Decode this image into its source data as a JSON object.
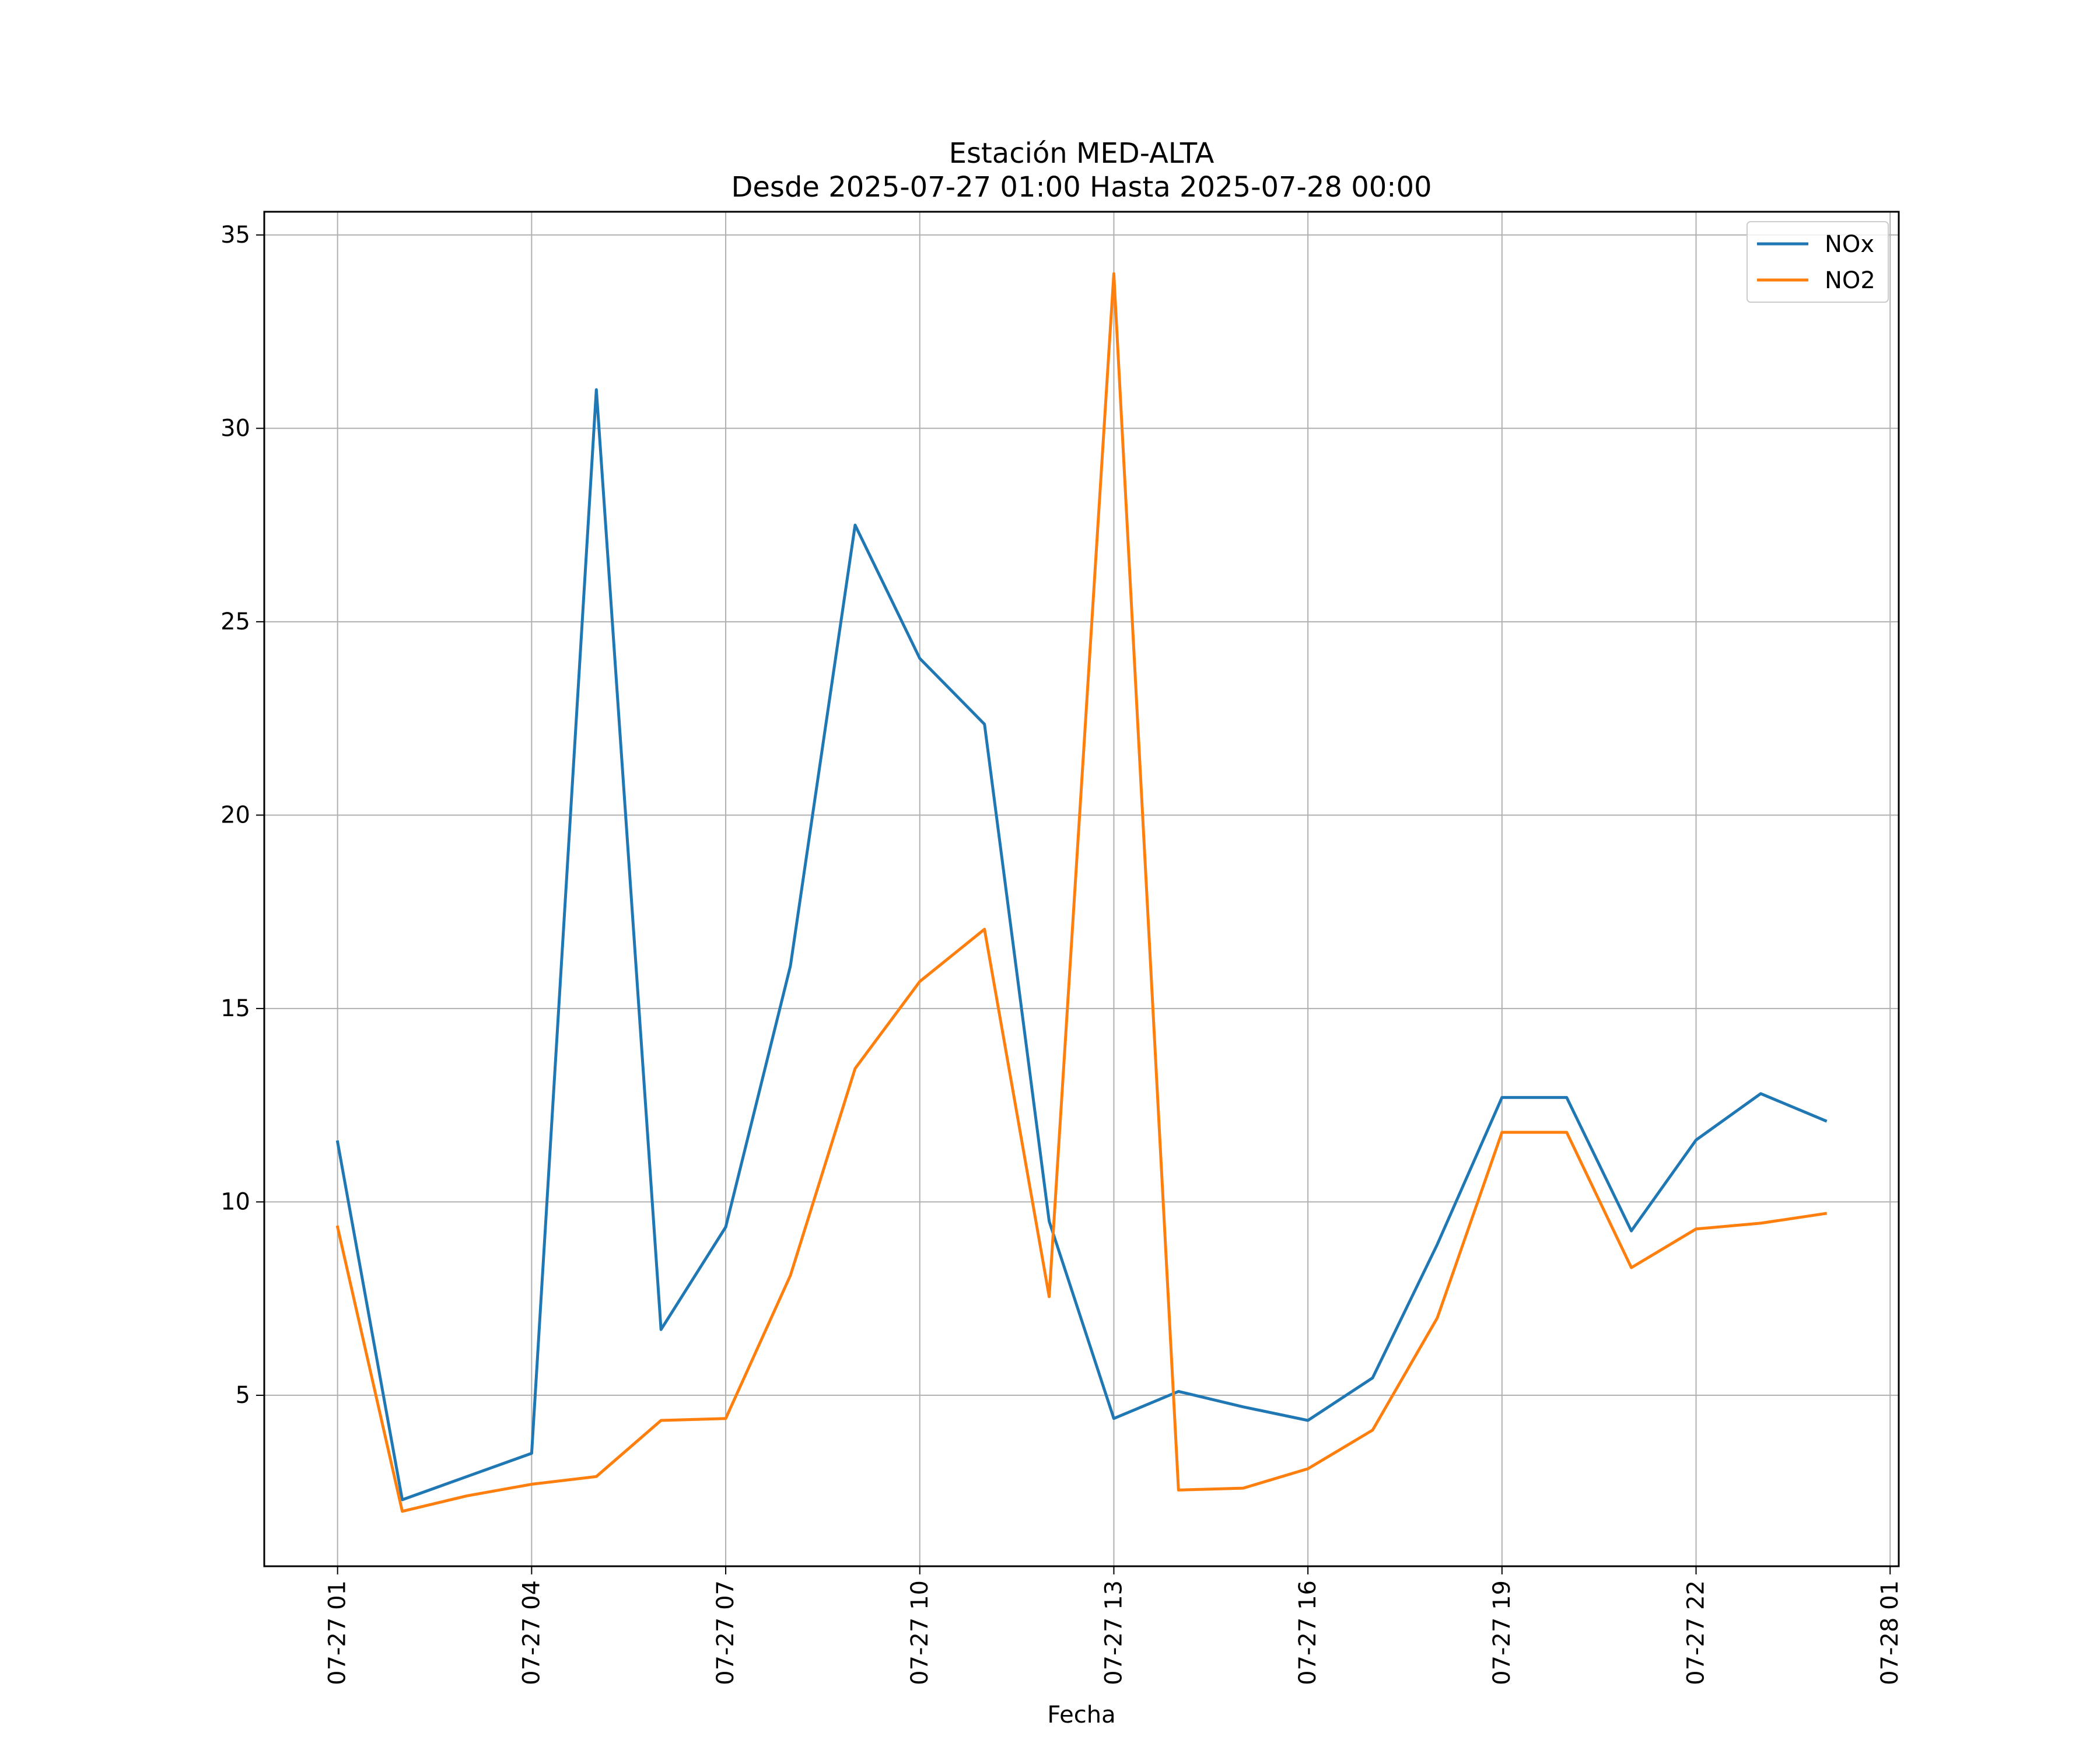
{
  "chart_data": {
    "type": "line",
    "title": "Estación MED-ALTA",
    "subtitle": "Desde 2025-07-27 01:00 Hasta 2025-07-28 00:00",
    "xlabel": "Fecha",
    "ylabel": "",
    "x_type": "datetime",
    "x": [
      "2025-07-27 01:00",
      "2025-07-27 02:00",
      "2025-07-27 03:00",
      "2025-07-27 04:00",
      "2025-07-27 05:00",
      "2025-07-27 06:00",
      "2025-07-27 07:00",
      "2025-07-27 08:00",
      "2025-07-27 09:00",
      "2025-07-27 10:00",
      "2025-07-27 11:00",
      "2025-07-27 12:00",
      "2025-07-27 13:00",
      "2025-07-27 14:00",
      "2025-07-27 15:00",
      "2025-07-27 16:00",
      "2025-07-27 17:00",
      "2025-07-27 18:00",
      "2025-07-27 19:00",
      "2025-07-27 20:00",
      "2025-07-27 21:00",
      "2025-07-27 22:00",
      "2025-07-27 23:00",
      "2025-07-28 00:00"
    ],
    "series": [
      {
        "name": "NOx",
        "color": "#1f77b4",
        "values": [
          11.55,
          2.3,
          2.9,
          3.5,
          31.0,
          6.7,
          9.35,
          16.1,
          27.5,
          24.05,
          22.35,
          9.5,
          4.4,
          5.1,
          4.7,
          4.35,
          5.45,
          8.9,
          12.7,
          12.7,
          9.25,
          11.6,
          12.8,
          12.1
        ]
      },
      {
        "name": "NO2",
        "color": "#ff7f0e",
        "values": [
          9.35,
          2.0,
          2.4,
          2.7,
          2.9,
          4.35,
          4.4,
          8.1,
          13.45,
          15.7,
          17.05,
          7.55,
          34.0,
          2.55,
          2.6,
          3.1,
          4.1,
          7.0,
          11.8,
          11.8,
          8.3,
          9.3,
          9.45,
          9.7
        ]
      }
    ],
    "xlim": [
      "2025-07-26 23:52",
      "2025-07-28 01:08"
    ],
    "ylim": [
      0.58,
      35.6
    ],
    "x_ticks": [
      {
        "value": "2025-07-27 01:00",
        "label": "07-27 01"
      },
      {
        "value": "2025-07-27 04:00",
        "label": "07-27 04"
      },
      {
        "value": "2025-07-27 07:00",
        "label": "07-27 07"
      },
      {
        "value": "2025-07-27 10:00",
        "label": "07-27 10"
      },
      {
        "value": "2025-07-27 13:00",
        "label": "07-27 13"
      },
      {
        "value": "2025-07-27 16:00",
        "label": "07-27 16"
      },
      {
        "value": "2025-07-27 19:00",
        "label": "07-27 19"
      },
      {
        "value": "2025-07-27 22:00",
        "label": "07-27 22"
      },
      {
        "value": "2025-07-28 01:00",
        "label": "07-28 01"
      }
    ],
    "y_ticks": [
      {
        "value": 5,
        "label": "5"
      },
      {
        "value": 10,
        "label": "10"
      },
      {
        "value": 15,
        "label": "15"
      },
      {
        "value": 20,
        "label": "20"
      },
      {
        "value": 25,
        "label": "25"
      },
      {
        "value": 30,
        "label": "30"
      },
      {
        "value": 35,
        "label": "35"
      }
    ],
    "grid": true,
    "legend_position": "top-right",
    "colors": {
      "grid": "#b0b0b0",
      "axes": "#000000",
      "legend_border": "#cccccc"
    }
  }
}
